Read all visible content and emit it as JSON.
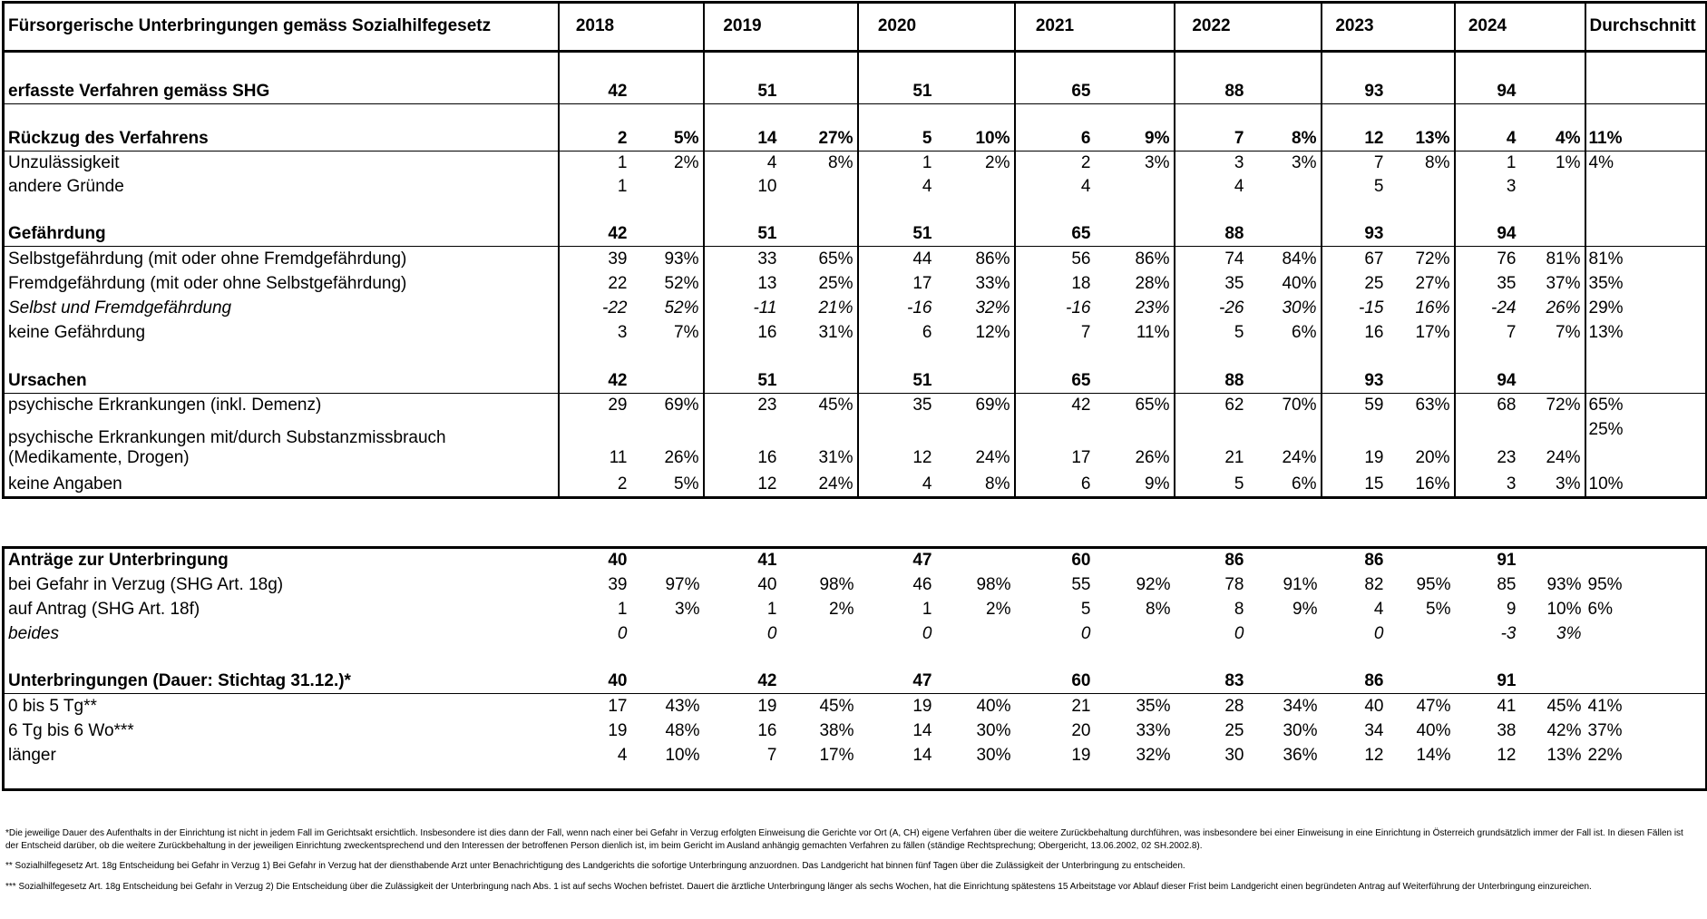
{
  "table1": {
    "header": {
      "label": "Fürsorgerische Unterbringungen gemäss Sozialhilfegesetz",
      "years": [
        "2018",
        "2019",
        "2020",
        "2021",
        "2022",
        "2023",
        "2024"
      ],
      "average": "Durchschnitt"
    },
    "rows": [
      {
        "label": "erfasste Verfahren gemäss SHG",
        "style": "bold",
        "cells": [
          "42",
          null,
          "51",
          null,
          "51",
          null,
          "65",
          null,
          "88",
          null,
          "93",
          null,
          "94",
          null
        ],
        "average": null
      },
      {
        "label": "Rückzug des Verfahrens",
        "style": "bold",
        "cells": [
          "2",
          "5%",
          "14",
          "27%",
          "5",
          "10%",
          "6",
          "9%",
          "7",
          "8%",
          "12",
          "13%",
          "4",
          "4%"
        ],
        "average": "11%"
      },
      {
        "label": "Unzulässigkeit",
        "style": "normal",
        "cells": [
          "1",
          "2%",
          "4",
          "8%",
          "1",
          "2%",
          "2",
          "3%",
          "3",
          "3%",
          "7",
          "8%",
          "1",
          "1%"
        ],
        "average": "4%"
      },
      {
        "label": "andere Gründe",
        "style": "normal",
        "cells": [
          "1",
          null,
          "10",
          null,
          "4",
          null,
          "4",
          null,
          "4",
          null,
          "5",
          null,
          "3",
          null
        ],
        "average": null
      },
      {
        "label": "Gefährdung",
        "style": "bold",
        "cells": [
          "42",
          null,
          "51",
          null,
          "51",
          null,
          "65",
          null,
          "88",
          null,
          "93",
          null,
          "94",
          null
        ],
        "average": null
      },
      {
        "label": "Selbstgefährdung (mit oder ohne Fremdgefährdung)",
        "style": "normal",
        "cells": [
          "39",
          "93%",
          "33",
          "65%",
          "44",
          "86%",
          "56",
          "86%",
          "74",
          "84%",
          "67",
          "72%",
          "76",
          "81%"
        ],
        "average": "81%"
      },
      {
        "label": "Fremdgefährdung (mit oder ohne Selbstgefährdung)",
        "style": "normal",
        "cells": [
          "22",
          "52%",
          "13",
          "25%",
          "17",
          "33%",
          "18",
          "28%",
          "35",
          "40%",
          "25",
          "27%",
          "35",
          "37%"
        ],
        "average": "35%"
      },
      {
        "label": "Selbst und Fremdgefährdung",
        "style": "italic",
        "cells": [
          "-22",
          "52%",
          "-11",
          "21%",
          "-16",
          "32%",
          "-16",
          "23%",
          "-26",
          "30%",
          "-15",
          "16%",
          "-24",
          "26%"
        ],
        "average": "29%"
      },
      {
        "label": "keine Gefährdung",
        "style": "normal",
        "cells": [
          "3",
          "7%",
          "16",
          "31%",
          "6",
          "12%",
          "7",
          "11%",
          "5",
          "6%",
          "16",
          "17%",
          "7",
          "7%"
        ],
        "average": "13%"
      },
      {
        "label": "Ursachen",
        "style": "bold",
        "cells": [
          "42",
          null,
          "51",
          null,
          "51",
          null,
          "65",
          null,
          "88",
          null,
          "93",
          null,
          "94",
          null
        ],
        "average": null
      },
      {
        "label": "psychische Erkrankungen (inkl. Demenz)",
        "style": "normal",
        "cells": [
          "29",
          "69%",
          "23",
          "45%",
          "35",
          "69%",
          "42",
          "65%",
          "62",
          "70%",
          "59",
          "63%",
          "68",
          "72%"
        ],
        "average": "65%"
      },
      {
        "label": [
          "psychische Erkrankungen mit/durch Substanzmissbrauch",
          "(Medikamente, Drogen)"
        ],
        "style": "normal",
        "cells": [
          "11",
          "26%",
          "16",
          "31%",
          "12",
          "24%",
          "17",
          "26%",
          "21",
          "24%",
          "19",
          "20%",
          "23",
          "24%"
        ],
        "average": "25%"
      },
      {
        "label": "keine Angaben",
        "style": "normal",
        "cells": [
          "2",
          "5%",
          "12",
          "24%",
          "4",
          "8%",
          "6",
          "9%",
          "5",
          "6%",
          "15",
          "16%",
          "3",
          "3%"
        ],
        "average": "10%"
      }
    ]
  },
  "table2": {
    "rows": [
      {
        "label": "Anträge zur Unterbringung",
        "style": "bold",
        "cells": [
          "40",
          null,
          "41",
          null,
          "47",
          null,
          "60",
          null,
          "86",
          null,
          "86",
          null,
          "91",
          null
        ],
        "average": null
      },
      {
        "label": "bei Gefahr in Verzug (SHG Art. 18g)",
        "style": "normal",
        "cells": [
          "39",
          "97%",
          "40",
          "98%",
          "46",
          "98%",
          "55",
          "92%",
          "78",
          "91%",
          "82",
          "95%",
          "85",
          "93%"
        ],
        "average": "95%"
      },
      {
        "label": "auf Antrag (SHG Art. 18f)",
        "style": "normal",
        "cells": [
          "1",
          "3%",
          "1",
          "2%",
          "1",
          "2%",
          "5",
          "8%",
          "8",
          "9%",
          "4",
          "5%",
          "9",
          "10%"
        ],
        "average": "6%"
      },
      {
        "label": "beides",
        "style": "italic",
        "cells": [
          "0",
          null,
          "0",
          null,
          "0",
          null,
          "0",
          null,
          "0",
          null,
          "0",
          null,
          "-3",
          "3%"
        ],
        "average": null
      },
      {
        "label": "Unterbringungen (Dauer: Stichtag 31.12.)*",
        "style": "bold",
        "cells": [
          "40",
          null,
          "42",
          null,
          "47",
          null,
          "60",
          null,
          "83",
          null,
          "86",
          null,
          "91",
          null
        ],
        "average": null
      },
      {
        "label": "0 bis 5 Tg**",
        "style": "normal",
        "cells": [
          "17",
          "43%",
          "19",
          "45%",
          "19",
          "40%",
          "21",
          "35%",
          "28",
          "34%",
          "40",
          "47%",
          "41",
          "45%"
        ],
        "average": "41%"
      },
      {
        "label": "6 Tg bis 6 Wo***",
        "style": "normal",
        "cells": [
          "19",
          "48%",
          "16",
          "38%",
          "14",
          "30%",
          "20",
          "33%",
          "25",
          "30%",
          "34",
          "40%",
          "38",
          "42%"
        ],
        "average": "37%"
      },
      {
        "label": "länger",
        "style": "normal",
        "cells": [
          "4",
          "10%",
          "7",
          "17%",
          "14",
          "30%",
          "19",
          "32%",
          "30",
          "36%",
          "12",
          "14%",
          "12",
          "13%"
        ],
        "average": "22%"
      }
    ]
  },
  "footnotes": [
    "*Die jeweilige Dauer des Aufenthalts in der Einrichtung ist nicht in jedem Fall im Gerichtsakt ersichtlich. Insbesondere ist dies dann der Fall, wenn nach einer bei Gefahr in Verzug erfolgten Einweisung die Gerichte vor Ort (A, CH) eigene Verfahren über die weitere Zurückbehaltung durchführen, was insbesondere bei einer Einweisung in eine Einrichtung in Österreich grundsätzlich immer der Fall ist. In diesen Fällen ist der Entscheid darüber, ob die weitere Zurückbehaltung in der jeweiligen Einrichtung zweckentsprechend und den Interessen der betroffenen Person dienlich ist, im beim Gericht im Ausland anhängig gemachten Verfahren zu fällen (ständige Rechtsprechung; Obergericht, 13.06.2002, 02 SH.2002.8).",
    "** Sozialhilfegesetz Art. 18g  Entscheidung bei Gefahr in Verzug 1) Bei Gefahr in Verzug hat der diensthabende Arzt unter Benachrichtigung des Landgerichts die sofortige Unterbringung anzuordnen. Das Landgericht hat binnen fünf Tagen über die Zulässigkeit der Unterbringung zu entscheiden.",
    "*** Sozialhilfegesetz Art. 18g  Entscheidung bei Gefahr in Verzug 2) Die Entscheidung über die Zulässigkeit der Unterbringung nach Abs. 1 ist auf sechs Wochen befristet. Dauert die ärztliche Unterbringung länger als sechs Wochen, hat die Einrichtung spätestens 15 Arbeitstage vor Ablauf dieser Frist beim Landgericht einen begründeten Antrag auf Weiterführung der Unterbringung einzureichen."
  ]
}
